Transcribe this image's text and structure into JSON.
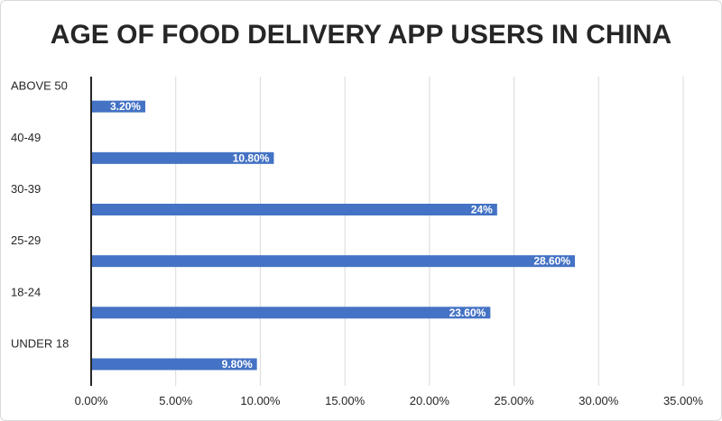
{
  "chart_data": {
    "type": "bar",
    "orientation": "horizontal",
    "title": "AGE OF FOOD DELIVERY APP USERS IN CHINA",
    "xlabel": "",
    "ylabel": "",
    "categories": [
      "ABOVE 50",
      "40-49",
      "30-39",
      "25-29",
      "18-24",
      "UNDER 18"
    ],
    "values": [
      3.2,
      10.8,
      24,
      28.6,
      23.6,
      9.8
    ],
    "data_labels": [
      "3.20%",
      "10.80%",
      "24%",
      "28.60%",
      "23.60%",
      "9.80%"
    ],
    "x_ticks": [
      "0.00%",
      "5.00%",
      "10.00%",
      "15.00%",
      "20.00%",
      "25.00%",
      "30.00%",
      "35.00%"
    ],
    "xlim": [
      0,
      35
    ],
    "grid": "vertical",
    "legend": "none",
    "bar_color": "#4472c4",
    "grid_color": "#d9d9d9",
    "axis_color": "#262626"
  }
}
